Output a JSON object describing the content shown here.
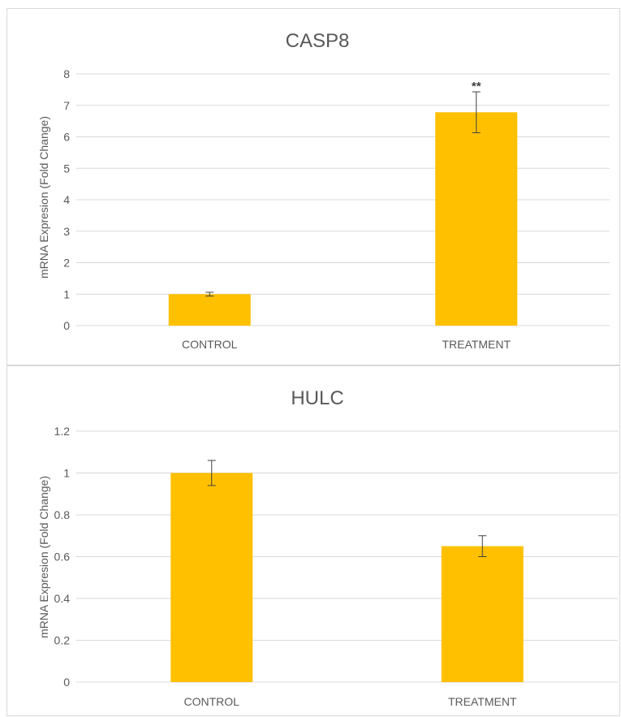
{
  "chart_data": [
    {
      "type": "bar",
      "title": "CASP8",
      "xlabel": "",
      "ylabel": "mRNA Expresion (Fold Change)",
      "categories": [
        "CONTROL",
        "TREATMENT"
      ],
      "values": [
        1.0,
        6.78
      ],
      "errors": [
        0.06,
        0.65
      ],
      "annotations": [
        "",
        "**"
      ],
      "ylim": [
        0,
        8
      ],
      "yticks": [
        0,
        1,
        2,
        3,
        4,
        5,
        6,
        7,
        8
      ],
      "ytick_labels": [
        "0",
        "1",
        "2",
        "3",
        "4",
        "5",
        "6",
        "7",
        "8"
      ],
      "grid": true,
      "legend": "none",
      "bar_color": "#FFC000"
    },
    {
      "type": "bar",
      "title": "HULC",
      "xlabel": "",
      "ylabel": "mRNA Expresion (Fold Change)",
      "categories": [
        "CONTROL",
        "TREATMENT"
      ],
      "values": [
        1.0,
        0.65
      ],
      "errors": [
        0.06,
        0.05
      ],
      "annotations": [
        "",
        ""
      ],
      "ylim": [
        0,
        1.2
      ],
      "yticks": [
        0,
        0.2,
        0.4,
        0.6,
        0.8,
        1.0,
        1.2
      ],
      "ytick_labels": [
        "0",
        "0.2",
        "0.4",
        "0.6",
        "0.8",
        "1",
        "1.2"
      ],
      "grid": true,
      "legend": "none",
      "bar_color": "#FFC000"
    }
  ]
}
